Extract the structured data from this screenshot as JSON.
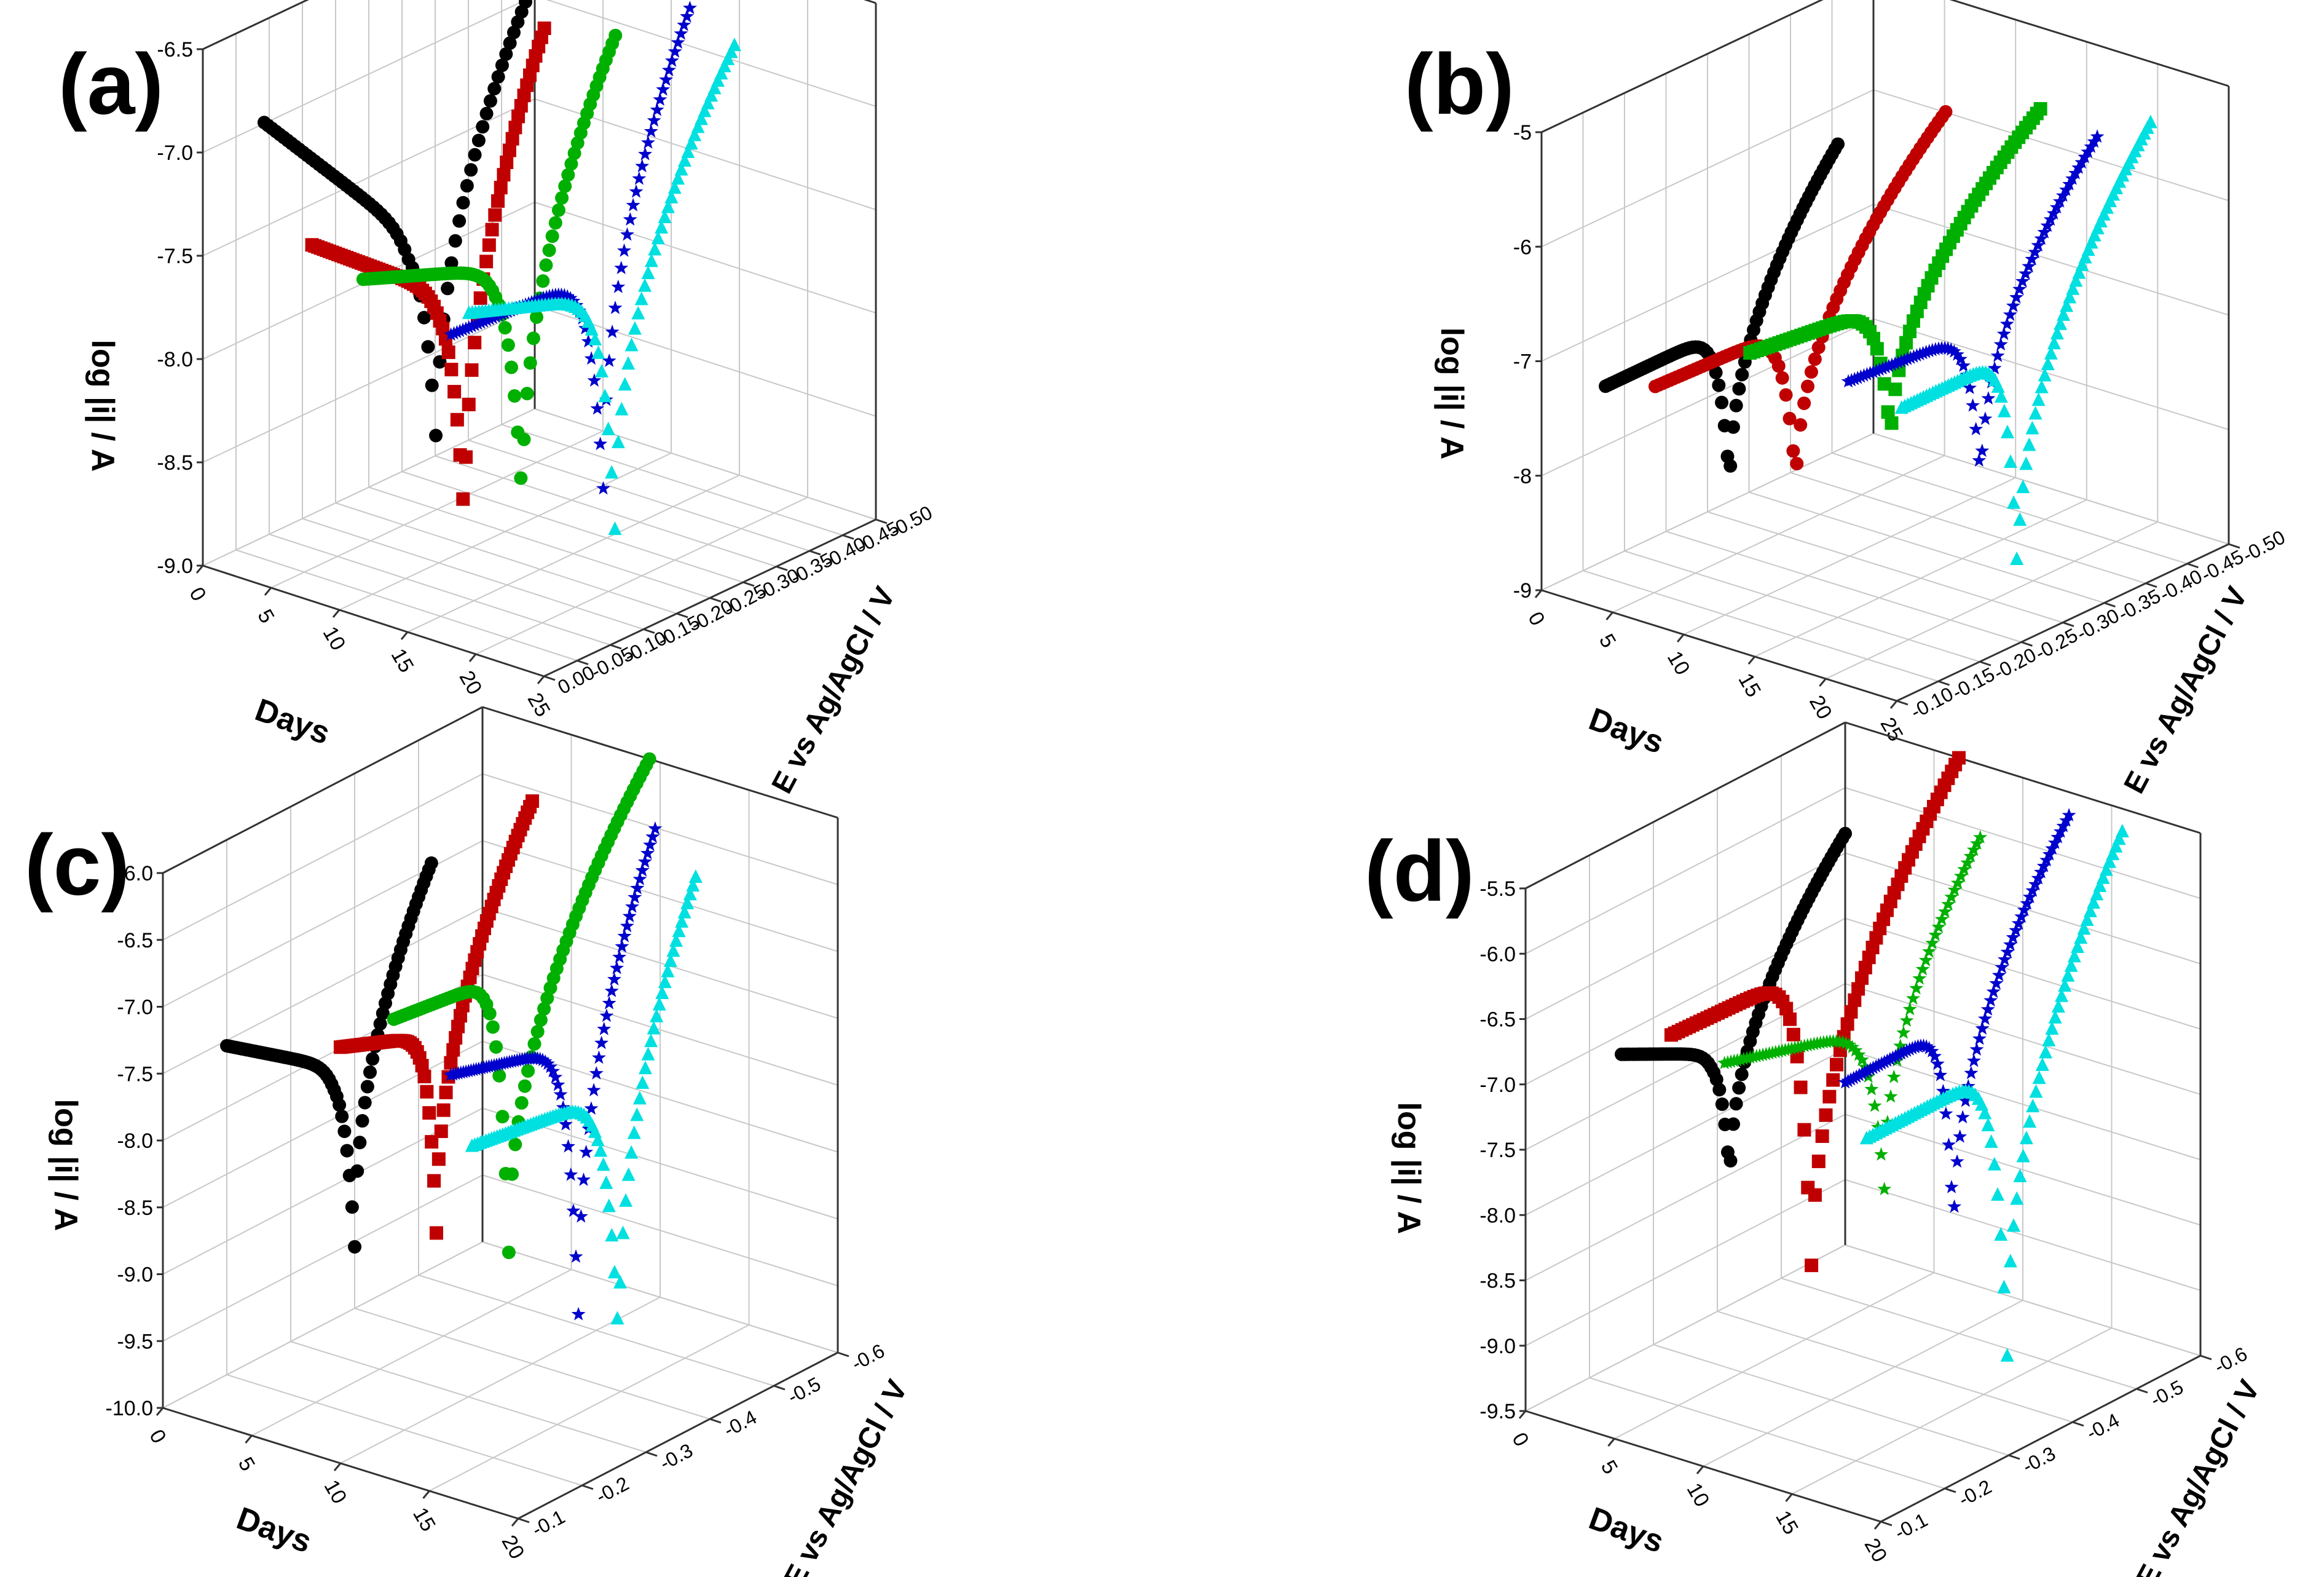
{
  "chart_data": [
    {
      "type": "scatter",
      "panel": "(a)",
      "xlabel": "Days",
      "ylabel": "E vs Ag/AgCl / V",
      "zlabel": "log |i| / A",
      "x_ticks": [
        "0",
        "5",
        "10",
        "15",
        "20",
        "25"
      ],
      "y_ticks": [
        "0.00",
        "-0.05",
        "-0.10",
        "-0.15",
        "-0.20",
        "-0.25",
        "-0.30",
        "-0.35",
        "-0.40",
        "-0.45",
        "-0.50"
      ],
      "z_ticks": [
        "-6.5",
        "-7.0",
        "-7.5",
        "-8.0",
        "-8.5",
        "-9.0"
      ],
      "xlim": [
        0,
        25
      ],
      "ylim": [
        -0.5,
        0.0
      ],
      "zlim": [
        -9.2,
        -6.3
      ],
      "series": [
        {
          "day": 0,
          "color": "#000000",
          "marker": "circle",
          "ecorr": -0.24,
          "e_start": -0.5,
          "e_end": -0.03,
          "z_start": -6.6,
          "z_min": -8.9,
          "z_end": -6.1,
          "plateau": -7.6
        },
        {
          "day": 5,
          "color": "#c00000",
          "marker": "square",
          "ecorr": -0.27,
          "e_start": -0.5,
          "e_end": -0.15,
          "z_start": -7.2,
          "z_min": -9.2,
          "z_end": -6.6,
          "plateau": -7.8
        },
        {
          "day": 10,
          "color": "#00b000",
          "marker": "circle",
          "ecorr": -0.26,
          "e_start": -0.5,
          "e_end": -0.12,
          "z_start": -7.3,
          "z_min": -9.0,
          "z_end": -6.6,
          "plateau": -7.6
        },
        {
          "day": 15,
          "color": "#0000cc",
          "marker": "star",
          "ecorr": -0.22,
          "e_start": -0.45,
          "e_end": -0.09,
          "z_start": -7.6,
          "z_min": -8.9,
          "z_end": -6.4,
          "plateau": -7.65
        },
        {
          "day": 20,
          "color": "#00e0e0",
          "marker": "triangle",
          "ecorr": -0.28,
          "e_start": -0.5,
          "e_end": -0.1,
          "z_start": -7.3,
          "z_min": -8.9,
          "z_end": -6.5,
          "plateau": -7.55
        }
      ]
    },
    {
      "type": "scatter",
      "panel": "(b)",
      "xlabel": "Days",
      "ylabel": "E vs Ag/AgCl / V",
      "zlabel": "log |i| / A",
      "x_ticks": [
        "0",
        "5",
        "10",
        "15",
        "20",
        "25"
      ],
      "y_ticks": [
        "-0.10",
        "-0.15",
        "-0.20",
        "-0.25",
        "-0.30",
        "-0.35",
        "-0.40",
        "-0.45",
        "-0.50"
      ],
      "z_ticks": [
        "-5",
        "-6",
        "-7",
        "-8",
        "-9"
      ],
      "xlim": [
        0,
        25
      ],
      "ylim": [
        -0.5,
        -0.1
      ],
      "zlim": [
        -9.5,
        -5.0
      ],
      "series": [
        {
          "day": 0,
          "color": "#000000",
          "marker": "circle",
          "ecorr": -0.35,
          "e_start": -0.5,
          "e_end": -0.22,
          "z_start": -7.3,
          "z_min": -8.9,
          "z_end": -6.0,
          "plateau": -7.3
        },
        {
          "day": 5,
          "color": "#c00000",
          "marker": "circle",
          "ecorr": -0.33,
          "e_start": -0.5,
          "e_end": -0.15,
          "z_start": -7.15,
          "z_min": -8.8,
          "z_end": -5.8,
          "plateau": -7.2
        },
        {
          "day": 10,
          "color": "#00b000",
          "marker": "square",
          "ecorr": -0.28,
          "e_start": -0.45,
          "e_end": -0.1,
          "z_start": -6.85,
          "z_min": -8.4,
          "z_end": -5.8,
          "plateau": -7.0
        },
        {
          "day": 15,
          "color": "#0000cc",
          "marker": "star",
          "ecorr": -0.24,
          "e_start": -0.4,
          "e_end": -0.1,
          "z_start": -7.15,
          "z_min": -8.8,
          "z_end": -5.9,
          "plateau": -7.25
        },
        {
          "day": 20,
          "color": "#00e0e0",
          "marker": "triangle",
          "ecorr": -0.26,
          "e_start": -0.4,
          "e_end": -0.1,
          "z_start": -7.25,
          "z_min": -9.5,
          "z_end": -5.6,
          "plateau": -7.25
        }
      ]
    },
    {
      "type": "scatter",
      "panel": "(c)",
      "xlabel": "Days",
      "ylabel": "E vs Ag/AgCl / V",
      "zlabel": "log |i| / A",
      "x_ticks": [
        "0",
        "5",
        "10",
        "15",
        "20"
      ],
      "y_ticks": [
        "-0.1",
        "-0.2",
        "-0.3",
        "-0.4",
        "-0.5",
        "-0.6"
      ],
      "z_ticks": [
        "-6.0",
        "-6.5",
        "-7.0",
        "-7.5",
        "-8.0",
        "-8.5",
        "-9.0",
        "-9.5",
        "-10.0"
      ],
      "xlim": [
        0,
        20
      ],
      "ylim": [
        -0.6,
        -0.1
      ],
      "zlim": [
        -10.0,
        -5.8
      ],
      "series": [
        {
          "day": 0,
          "color": "#000000",
          "marker": "circle",
          "ecorr": -0.4,
          "e_start": -0.6,
          "e_end": -0.28,
          "z_start": -7.0,
          "z_min": -9.1,
          "z_end": -6.4,
          "plateau": -7.6
        },
        {
          "day": 5,
          "color": "#c00000",
          "marker": "square",
          "ecorr": -0.35,
          "e_start": -0.5,
          "e_end": -0.2,
          "z_start": -7.15,
          "z_min": -9.0,
          "z_end": -6.0,
          "plateau": -7.4
        },
        {
          "day": 10,
          "color": "#00b000",
          "marker": "circle",
          "ecorr": -0.32,
          "e_start": -0.5,
          "e_end": -0.1,
          "z_start": -6.8,
          "z_min": -9.1,
          "z_end": -5.8,
          "plateau": -6.9
        },
        {
          "day": 15,
          "color": "#0000cc",
          "marker": "star",
          "ecorr": -0.3,
          "e_start": -0.5,
          "e_end": -0.18,
          "z_start": -7.1,
          "z_min": -9.5,
          "z_end": -6.0,
          "plateau": -7.35
        },
        {
          "day": 20,
          "color": "#00e0e0",
          "marker": "triangle",
          "ecorr": -0.32,
          "e_start": -0.55,
          "e_end": -0.2,
          "z_start": -7.4,
          "z_min": -9.6,
          "z_end": -6.2,
          "plateau": -7.55
        }
      ]
    },
    {
      "type": "scatter",
      "panel": "(d)",
      "xlabel": "Days",
      "ylabel": "E vs Ag/AgCl / V",
      "zlabel": "log |i| / A",
      "x_ticks": [
        "0",
        "5",
        "10",
        "15",
        "20"
      ],
      "y_ticks": [
        "-0.1",
        "-0.2",
        "-0.3",
        "-0.4",
        "-0.5",
        "-0.6"
      ],
      "z_ticks": [
        "-5.5",
        "-6.0",
        "-6.5",
        "-7.0",
        "-7.5",
        "-8.0",
        "-8.5",
        "-9.0",
        "-9.5"
      ],
      "xlim": [
        0,
        20
      ],
      "ylim": [
        -0.6,
        -0.1
      ],
      "zlim": [
        -9.7,
        -5.2
      ],
      "series": [
        {
          "day": 0,
          "color": "#000000",
          "marker": "circle",
          "ecorr": -0.38,
          "e_start": -0.55,
          "e_end": -0.2,
          "z_start": -6.6,
          "z_min": -8.2,
          "z_end": -5.7,
          "plateau": -7.0
        },
        {
          "day": 5,
          "color": "#c00000",
          "marker": "square",
          "ecorr": -0.33,
          "e_start": -0.55,
          "e_end": -0.1,
          "z_start": -6.3,
          "z_min": -9.0,
          "z_end": -5.2,
          "plateau": -6.35
        },
        {
          "day": 10,
          "color": "#00b000",
          "marker": "star",
          "ecorr": -0.3,
          "e_start": -0.55,
          "e_end": -0.15,
          "z_start": -6.4,
          "z_min": -8.2,
          "z_end": -5.6,
          "plateau": -6.75
        },
        {
          "day": 15,
          "color": "#0000cc",
          "marker": "star",
          "ecorr": -0.28,
          "e_start": -0.45,
          "e_end": -0.1,
          "z_start": -6.7,
          "z_min": -8.5,
          "z_end": -5.4,
          "plateau": -6.7
        },
        {
          "day": 20,
          "color": "#00e0e0",
          "marker": "triangle",
          "ecorr": -0.28,
          "e_start": -0.5,
          "e_end": -0.1,
          "z_start": -6.9,
          "z_min": -9.4,
          "z_end": -5.4,
          "plateau": -6.9
        }
      ]
    }
  ]
}
